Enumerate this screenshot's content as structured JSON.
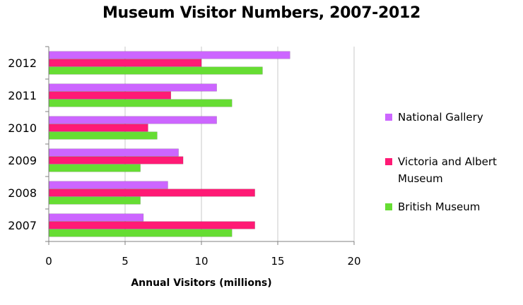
{
  "chart_data": {
    "type": "bar",
    "orientation": "horizontal",
    "title": "Museum Visitor Numbers, 2007-2012",
    "xlabel": "Annual Visitors (millions)",
    "ylabel": "",
    "xlim": [
      0,
      20
    ],
    "xticks": [
      "0",
      "5",
      "10",
      "15",
      "20"
    ],
    "grid": "vertical",
    "legend_position": "right",
    "categories": [
      "2012",
      "2011",
      "2010",
      "2009",
      "2008",
      "2007"
    ],
    "series": [
      {
        "name": "National Gallery",
        "color": "#cc66ff",
        "values": [
          15.8,
          11.0,
          11.0,
          8.5,
          7.8,
          6.2
        ]
      },
      {
        "name": "Victoria and Albert Museum",
        "color": "#ff1a75",
        "values": [
          10.0,
          8.0,
          6.5,
          8.8,
          13.5,
          13.5
        ]
      },
      {
        "name": "British Museum",
        "color": "#66dd33",
        "values": [
          14.0,
          12.0,
          7.1,
          6.0,
          6.0,
          12.0
        ]
      }
    ]
  }
}
